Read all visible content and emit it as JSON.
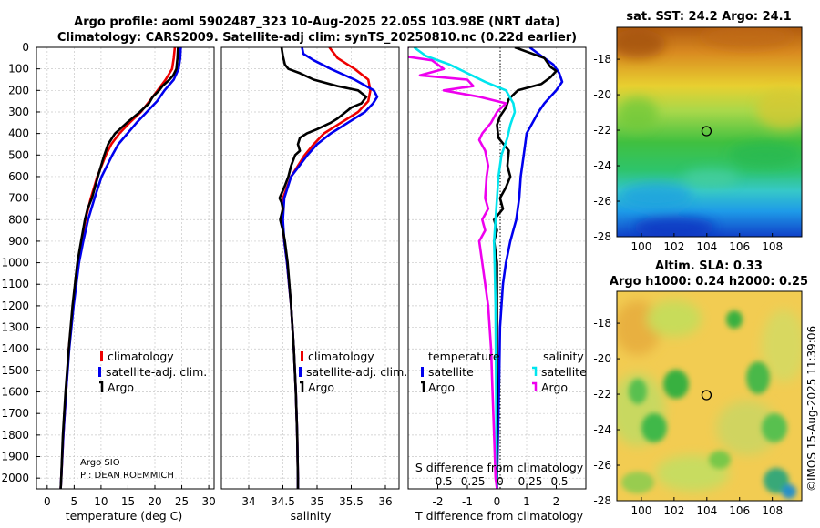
{
  "titles": {
    "line1": "Argo profile: aoml 5902487_323 10-Aug-2025 22.05S 103.98E (NRT data)",
    "line2": "Climatology: CARS2009. Satellite-adj clim: synTS_20250810.nc (0.22d earlier)"
  },
  "credit": {
    "line1": "Argo SIO",
    "line2": "PI: DEAN ROEMMICH"
  },
  "timestamp": "©IMOS 15-Aug-2025 11:39:06",
  "colors": {
    "climatology": "#ee0000",
    "satellite": "#0000ee",
    "argo": "#000000",
    "sal_satellite": "#00e5ee",
    "sal_argo": "#ee00ee"
  },
  "chart_data": [
    {
      "type": "line",
      "name": "temperature-profile",
      "xlabel": "temperature (deg C)",
      "xlim": [
        -2,
        31
      ],
      "ylim": [
        0,
        2050
      ],
      "xticks": [
        0,
        5,
        10,
        15,
        20,
        25,
        30
      ],
      "yticks": [
        0,
        100,
        200,
        300,
        400,
        500,
        600,
        700,
        800,
        900,
        1000,
        1100,
        1200,
        1300,
        1400,
        1500,
        1600,
        1700,
        1800,
        1900,
        2000
      ],
      "legend": [
        "climatology",
        "satellite-adj. clim.",
        "Argo"
      ],
      "series": [
        {
          "name": "climatology",
          "color": "#ee0000",
          "depth": [
            0,
            50,
            100,
            150,
            200,
            250,
            300,
            350,
            400,
            450,
            500,
            600,
            700,
            800,
            900,
            1000,
            1200,
            1400,
            1600,
            1800,
            2000,
            2050
          ],
          "values": [
            23.7,
            23.5,
            23.2,
            22.0,
            20.5,
            19.0,
            17.4,
            15.3,
            13.4,
            11.9,
            10.9,
            9.3,
            8.1,
            7.1,
            6.4,
            5.7,
            4.8,
            4.0,
            3.5,
            3.0,
            2.6,
            2.5
          ]
        },
        {
          "name": "satellite-adj. clim.",
          "color": "#0000ee",
          "depth": [
            0,
            50,
            100,
            150,
            200,
            250,
            300,
            350,
            400,
            450,
            500,
            600,
            700,
            800,
            900,
            1000,
            1200,
            1400,
            1600,
            1800,
            2000,
            2050
          ],
          "values": [
            24.8,
            24.7,
            24.4,
            23.5,
            21.8,
            20.4,
            18.5,
            16.6,
            14.9,
            13.2,
            12.1,
            10.1,
            8.8,
            7.6,
            6.7,
            5.9,
            4.9,
            4.1,
            3.5,
            3.0,
            2.6,
            2.5
          ]
        },
        {
          "name": "Argo",
          "color": "#000000",
          "depth": [
            0,
            50,
            100,
            130,
            150,
            180,
            200,
            230,
            260,
            300,
            350,
            400,
            450,
            500,
            600,
            700,
            750,
            800,
            900,
            1000,
            1200,
            1400,
            1600,
            1800,
            2000,
            2050
          ],
          "values": [
            24.3,
            24.2,
            24.0,
            23.4,
            22.7,
            21.4,
            20.8,
            19.6,
            18.9,
            17.2,
            14.8,
            12.6,
            11.3,
            10.6,
            9.4,
            8.3,
            7.5,
            7.0,
            6.3,
            5.6,
            4.7,
            4.0,
            3.4,
            2.9,
            2.6,
            2.5
          ]
        }
      ]
    },
    {
      "type": "line",
      "name": "salinity-profile",
      "xlabel": "salinity",
      "xlim": [
        33.6,
        36.2
      ],
      "ylim": [
        0,
        2050
      ],
      "xticks": [
        34,
        34.5,
        35,
        35.5,
        36
      ],
      "legend": [
        "climatology",
        "satellite-adj. clim.",
        "Argo"
      ],
      "series": [
        {
          "name": "climatology",
          "color": "#ee0000",
          "depth": [
            0,
            50,
            100,
            150,
            200,
            250,
            300,
            350,
            400,
            450,
            500,
            600,
            700,
            800,
            900,
            1000,
            1200,
            1400,
            1600,
            1800,
            2000,
            2050
          ],
          "values": [
            35.18,
            35.3,
            35.55,
            35.75,
            35.78,
            35.75,
            35.6,
            35.35,
            35.1,
            34.95,
            34.82,
            34.62,
            34.5,
            34.49,
            34.52,
            34.56,
            34.62,
            34.66,
            34.69,
            34.71,
            34.72,
            34.72
          ]
        },
        {
          "name": "satellite-adj. clim.",
          "color": "#0000ee",
          "depth": [
            0,
            30,
            60,
            100,
            150,
            200,
            230,
            260,
            300,
            350,
            400,
            450,
            500,
            600,
            700,
            800,
            900,
            1000,
            1200,
            1400,
            1600,
            1800,
            2000,
            2050
          ],
          "values": [
            34.78,
            34.8,
            34.95,
            35.2,
            35.55,
            35.83,
            35.88,
            35.82,
            35.7,
            35.45,
            35.2,
            35.0,
            34.86,
            34.62,
            34.52,
            34.5,
            34.52,
            34.56,
            34.62,
            34.66,
            34.69,
            34.71,
            34.72,
            34.72
          ]
        },
        {
          "name": "Argo",
          "color": "#000000",
          "depth": [
            0,
            40,
            80,
            100,
            120,
            150,
            180,
            200,
            230,
            260,
            280,
            300,
            330,
            350,
            380,
            400,
            420,
            450,
            480,
            500,
            550,
            600,
            650,
            700,
            720,
            750,
            800,
            850,
            900,
            950,
            1000,
            1200,
            1400,
            1600,
            1800,
            2000,
            2050
          ],
          "values": [
            34.48,
            34.5,
            34.53,
            34.58,
            34.75,
            34.95,
            35.3,
            35.6,
            35.72,
            35.65,
            35.5,
            35.42,
            35.3,
            35.2,
            35.0,
            34.85,
            34.75,
            34.72,
            34.75,
            34.68,
            34.62,
            34.58,
            34.52,
            34.45,
            34.48,
            34.5,
            34.46,
            34.5,
            34.53,
            34.55,
            34.57,
            34.62,
            34.66,
            34.69,
            34.71,
            34.72,
            34.72
          ]
        }
      ]
    },
    {
      "type": "line",
      "name": "difference-profile",
      "xlabel": "T difference from climatology",
      "xlabel_top": "S difference from climatology",
      "xlim": [
        -3,
        3
      ],
      "ylim": [
        0,
        2050
      ],
      "xticks": [
        -2,
        -1,
        0,
        1,
        2
      ],
      "xticks_top": [
        "-0.5",
        "-0.25",
        "0",
        "0.25",
        "0.5"
      ],
      "legend_temperature": {
        "title": "temperature",
        "items": [
          "satellite",
          "Argo"
        ]
      },
      "legend_salinity": {
        "title": "salinity",
        "items": [
          "satellite",
          "Argo"
        ]
      },
      "series": [
        {
          "name": "T satellite",
          "color": "#0000ee",
          "depth": [
            0,
            40,
            80,
            120,
            160,
            200,
            260,
            300,
            400,
            500,
            600,
            700,
            800,
            900,
            1000,
            1100,
            1300,
            1500,
            1700,
            1900,
            2000,
            2050
          ],
          "values": [
            1.1,
            1.5,
            1.9,
            2.1,
            2.2,
            2.0,
            1.6,
            1.4,
            1.0,
            0.9,
            0.8,
            0.75,
            0.65,
            0.45,
            0.3,
            0.2,
            0.1,
            0.08,
            0.05,
            0.02,
            0.0,
            0.0
          ]
        },
        {
          "name": "T Argo",
          "color": "#000000",
          "depth": [
            0,
            50,
            90,
            110,
            140,
            170,
            200,
            240,
            280,
            320,
            360,
            420,
            480,
            550,
            600,
            650,
            700,
            750,
            800,
            850,
            900,
            1000,
            1200,
            1500,
            1800,
            2000,
            2050
          ],
          "values": [
            0.6,
            1.6,
            1.8,
            2.0,
            1.8,
            1.5,
            0.7,
            0.4,
            0.3,
            0.1,
            0.0,
            0.05,
            0.4,
            0.35,
            0.45,
            0.3,
            0.1,
            0.2,
            -0.1,
            0.0,
            -0.1,
            0.0,
            0.0,
            0.0,
            0.0,
            0.0,
            0.0
          ]
        },
        {
          "name": "S satellite",
          "color": "#00e5ee",
          "depth": [
            0,
            40,
            80,
            120,
            160,
            200,
            260,
            300,
            360,
            420,
            500,
            600,
            700,
            800,
            900,
            1000,
            1200,
            1400,
            1600,
            1800,
            2000,
            2050
          ],
          "values": [
            -2.8,
            -2.4,
            -1.6,
            -1.0,
            -0.4,
            0.3,
            0.55,
            0.6,
            0.45,
            0.35,
            0.15,
            0.05,
            0.0,
            -0.05,
            -0.1,
            -0.08,
            -0.05,
            -0.04,
            -0.03,
            -0.02,
            -0.01,
            0.0
          ]
        },
        {
          "name": "S Argo",
          "color": "#ee00ee",
          "depth": [
            0,
            40,
            60,
            100,
            130,
            150,
            180,
            200,
            230,
            260,
            300,
            350,
            400,
            430,
            480,
            550,
            600,
            700,
            750,
            800,
            850,
            900,
            1000,
            1200,
            1400,
            1600,
            1800,
            2000,
            2050
          ],
          "values": [
            -3.0,
            -3.2,
            -2.2,
            -1.8,
            -2.6,
            -1.0,
            -0.8,
            -1.8,
            -0.6,
            0.3,
            0.0,
            -0.2,
            -0.5,
            -0.6,
            -0.4,
            -0.3,
            -0.35,
            -0.4,
            -0.3,
            -0.5,
            -0.4,
            -0.6,
            -0.5,
            -0.3,
            -0.2,
            -0.15,
            -0.1,
            -0.05,
            0.0
          ]
        }
      ]
    },
    {
      "type": "heatmap",
      "name": "sst-map",
      "title": "sat. SST: 24.2 Argo: 24.1",
      "xlim": [
        98.5,
        109.8
      ],
      "ylim": [
        -28,
        -16.2
      ],
      "xticks": [
        100,
        102,
        104,
        106,
        108
      ],
      "yticks": [
        -18,
        -20,
        -22,
        -24,
        -26,
        -28
      ],
      "marker": [
        103.98,
        -22.05
      ]
    },
    {
      "type": "heatmap",
      "name": "sla-map",
      "title": "Altim. SLA: 0.33",
      "subtitle": "Argo h1000: 0.24 h2000: 0.25",
      "xlim": [
        98.5,
        109.8
      ],
      "ylim": [
        -28,
        -16.2
      ],
      "xticks": [
        100,
        102,
        104,
        106,
        108
      ],
      "yticks": [
        -18,
        -20,
        -22,
        -24,
        -26,
        -28
      ],
      "marker": [
        103.98,
        -22.05
      ]
    }
  ]
}
